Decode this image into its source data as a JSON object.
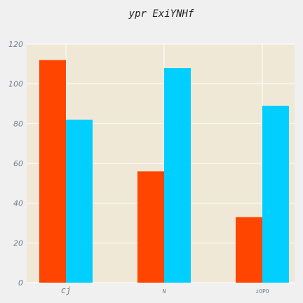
{
  "chart_data": {
    "type": "bar",
    "title": "ypr ExiYNHf",
    "xlabel": "",
    "ylabel": "",
    "categories": [
      "cj",
      "N",
      "zOPO"
    ],
    "series": [
      {
        "values": [
          112,
          56,
          33
        ]
      },
      {
        "values": [
          82,
          108,
          89
        ]
      }
    ],
    "ylim": [
      0,
      120
    ],
    "yticks": [
      0,
      20,
      40,
      60,
      80,
      100,
      120
    ],
    "grid": true,
    "legend": "none",
    "colors": {
      "series": [
        "#ff4500",
        "#00cfff"
      ],
      "plot_background": "#f0e8d6",
      "grid": "#ffffff",
      "page_background": "#f0f0f0"
    }
  }
}
